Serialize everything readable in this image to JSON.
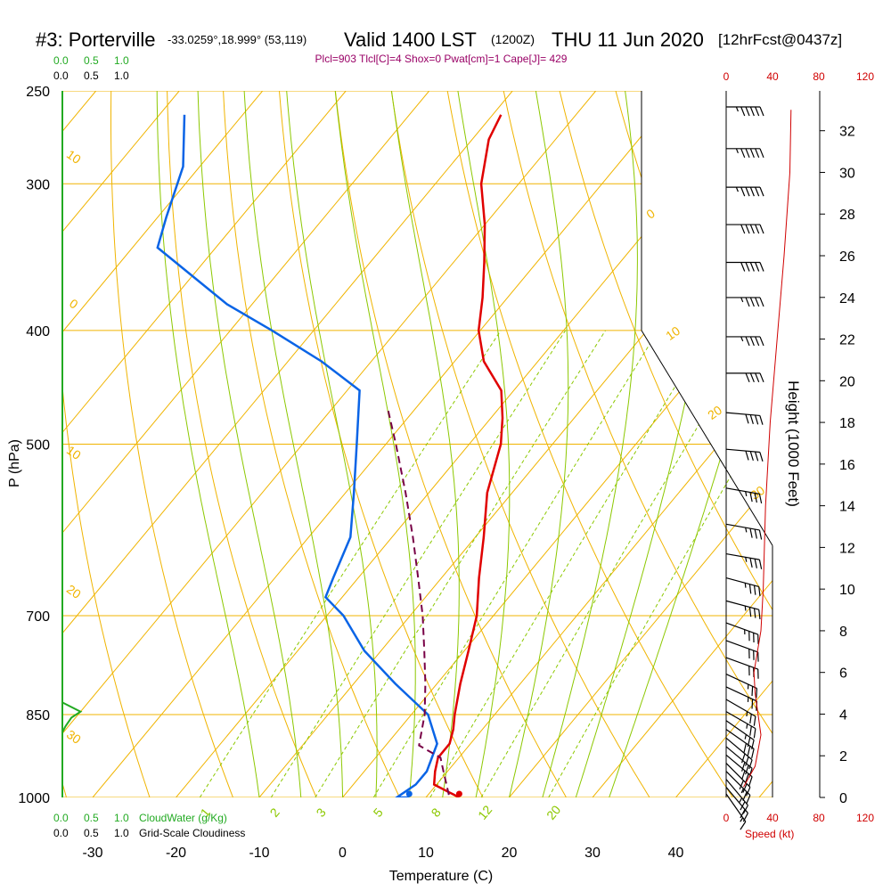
{
  "header": {
    "station": "#3: Porterville",
    "coords": "-33.0259°,18.999° (53,119)",
    "valid": "Valid 1400 LST",
    "utc": "(1200Z)",
    "date": "THU 11 Jun 2020",
    "forecast": "[12hrFcst@0437z]",
    "indices": "Plcl=903 Tlcl[C]=4 Shox=0 Pwat[cm]=1 Cape[J]= 429"
  },
  "colors": {
    "isotherm": "#f0b400",
    "dry_adiabat": "#f0b400",
    "moist_adiabat": "#8cc800",
    "mixing_ratio": "#8cc800",
    "temperature": "#e00000",
    "dewpoint": "#0a64e6",
    "parcel": "#780046",
    "cloudwater": "#22aa22",
    "wind_speed": "#d00000",
    "indices": "#990066"
  },
  "chart_data": {
    "type": "line",
    "title": "#3: Porterville",
    "xlabel": "Temperature (C)",
    "ylabel": "P (hPa)",
    "y2label": "Height (1000 Feet)",
    "xlim": [
      -34,
      46
    ],
    "ylim": [
      1000,
      250
    ],
    "y_scale": "log",
    "x_ticks": [
      "-30",
      "-20",
      "-10",
      "0",
      "10",
      "20",
      "30",
      "40"
    ],
    "pressure_ticks": [
      "250",
      "300",
      "400",
      "500",
      "700",
      "850",
      "1000"
    ],
    "height_ticks": [
      "0",
      "2",
      "4",
      "6",
      "8",
      "10",
      "12",
      "14",
      "16",
      "18",
      "20",
      "22",
      "24",
      "26",
      "28",
      "30",
      "32"
    ],
    "top_scale": {
      "green": [
        "0.0",
        "0.5",
        "1.0"
      ],
      "black": [
        "0.0",
        "0.5",
        "1.0"
      ]
    },
    "bottom_scale": {
      "green": [
        "0.0",
        "0.5",
        "1.0"
      ],
      "green_label": "CloudWater (g/Kg)",
      "black": [
        "0.0",
        "0.5",
        "1.0"
      ],
      "black_label": "Grid-Scale Cloudiness"
    },
    "speed_scale": {
      "labels": [
        "0",
        "40",
        "80",
        "120"
      ],
      "label": "Speed (kt)"
    },
    "isotherm_labels": [
      "0",
      "10",
      "20",
      "30"
    ],
    "dry_adiabat_labels": [
      "10",
      "0",
      "10",
      "20",
      "30"
    ],
    "mixing_ratio_labels": [
      "1",
      "2",
      "3",
      "5",
      "8",
      "12",
      "20"
    ],
    "series": [
      {
        "name": "Temperature",
        "points": [
          [
            1000,
            14
          ],
          [
            990,
            12.3
          ],
          [
            975,
            9.7
          ],
          [
            950,
            8.5
          ],
          [
            925,
            7.5
          ],
          [
            900,
            7.5
          ],
          [
            875,
            6.5
          ],
          [
            850,
            5.2
          ],
          [
            800,
            2.8
          ],
          [
            750,
            0.5
          ],
          [
            700,
            -2
          ],
          [
            650,
            -5.5
          ],
          [
            600,
            -9
          ],
          [
            550,
            -13
          ],
          [
            500,
            -16.2
          ],
          [
            475,
            -18.6
          ],
          [
            450,
            -21.5
          ],
          [
            425,
            -26.5
          ],
          [
            400,
            -30.2
          ],
          [
            375,
            -33
          ],
          [
            350,
            -36.3
          ],
          [
            325,
            -40
          ],
          [
            300,
            -44.5
          ],
          [
            275,
            -48
          ],
          [
            262,
            -49
          ]
        ]
      },
      {
        "name": "Dewpoint",
        "points": [
          [
            1000,
            8
          ],
          [
            1000,
            6.5
          ],
          [
            975,
            7.5
          ],
          [
            950,
            7.5
          ],
          [
            900,
            6
          ],
          [
            850,
            2
          ],
          [
            800,
            -5
          ],
          [
            750,
            -12
          ],
          [
            700,
            -18
          ],
          [
            675,
            -22
          ],
          [
            650,
            -23
          ],
          [
            600,
            -25
          ],
          [
            550,
            -29
          ],
          [
            500,
            -33.5
          ],
          [
            450,
            -38.5
          ],
          [
            425,
            -46
          ],
          [
            400,
            -55
          ],
          [
            380,
            -63
          ],
          [
            340,
            -77
          ],
          [
            320,
            -79
          ],
          [
            290,
            -82
          ],
          [
            262,
            -87
          ]
        ]
      },
      {
        "name": "Parcel",
        "points": [
          [
            995,
            12.5
          ],
          [
            950,
            9.5
          ],
          [
            925,
            7.8
          ],
          [
            903,
            4
          ],
          [
            850,
            1.6
          ],
          [
            800,
            -1.4
          ],
          [
            750,
            -4.8
          ],
          [
            700,
            -8.5
          ],
          [
            650,
            -12.8
          ],
          [
            600,
            -17.5
          ],
          [
            550,
            -22.8
          ],
          [
            500,
            -28.8
          ],
          [
            465,
            -33.5
          ]
        ]
      },
      {
        "name": "CloudWater",
        "points": [
          [
            830,
            0
          ],
          [
            845,
            0.3
          ],
          [
            855,
            0.15
          ],
          [
            870,
            0.05
          ],
          [
            880,
            0
          ]
        ]
      },
      {
        "name": "Wind speed (kt)",
        "points": [
          [
            0.5,
            15
          ],
          [
            1.5,
            25
          ],
          [
            3,
            30
          ],
          [
            5,
            25
          ],
          [
            6,
            24
          ],
          [
            8,
            30
          ],
          [
            10,
            32
          ],
          [
            12,
            33
          ],
          [
            14,
            34
          ],
          [
            18,
            38
          ],
          [
            22,
            44
          ],
          [
            26,
            50
          ],
          [
            30,
            55
          ],
          [
            33,
            56
          ]
        ]
      }
    ],
    "wind_barbs": [
      {
        "p": 258,
        "dir": 270,
        "spd": 55
      },
      {
        "p": 280,
        "dir": 270,
        "spd": 55
      },
      {
        "p": 302,
        "dir": 270,
        "spd": 55
      },
      {
        "p": 325,
        "dir": 270,
        "spd": 50
      },
      {
        "p": 350,
        "dir": 270,
        "spd": 50
      },
      {
        "p": 375,
        "dir": 270,
        "spd": 45
      },
      {
        "p": 405,
        "dir": 270,
        "spd": 45
      },
      {
        "p": 435,
        "dir": 270,
        "spd": 40
      },
      {
        "p": 470,
        "dir": 275,
        "spd": 40
      },
      {
        "p": 505,
        "dir": 275,
        "spd": 40
      },
      {
        "p": 545,
        "dir": 280,
        "spd": 35
      },
      {
        "p": 585,
        "dir": 280,
        "spd": 35
      },
      {
        "p": 620,
        "dir": 280,
        "spd": 35
      },
      {
        "p": 650,
        "dir": 285,
        "spd": 35
      },
      {
        "p": 680,
        "dir": 285,
        "spd": 35
      },
      {
        "p": 710,
        "dir": 290,
        "spd": 35
      },
      {
        "p": 735,
        "dir": 290,
        "spd": 30
      },
      {
        "p": 760,
        "dir": 290,
        "spd": 30
      },
      {
        "p": 785,
        "dir": 295,
        "spd": 25
      },
      {
        "p": 805,
        "dir": 295,
        "spd": 25
      },
      {
        "p": 825,
        "dir": 300,
        "spd": 25
      },
      {
        "p": 845,
        "dir": 300,
        "spd": 25
      },
      {
        "p": 860,
        "dir": 305,
        "spd": 25
      },
      {
        "p": 875,
        "dir": 305,
        "spd": 30
      },
      {
        "p": 890,
        "dir": 310,
        "spd": 30
      },
      {
        "p": 905,
        "dir": 310,
        "spd": 30
      },
      {
        "p": 920,
        "dir": 310,
        "spd": 30
      },
      {
        "p": 935,
        "dir": 315,
        "spd": 30
      },
      {
        "p": 950,
        "dir": 315,
        "spd": 25
      },
      {
        "p": 965,
        "dir": 320,
        "spd": 25
      },
      {
        "p": 980,
        "dir": 320,
        "spd": 20
      },
      {
        "p": 993,
        "dir": 325,
        "spd": 15
      }
    ]
  }
}
